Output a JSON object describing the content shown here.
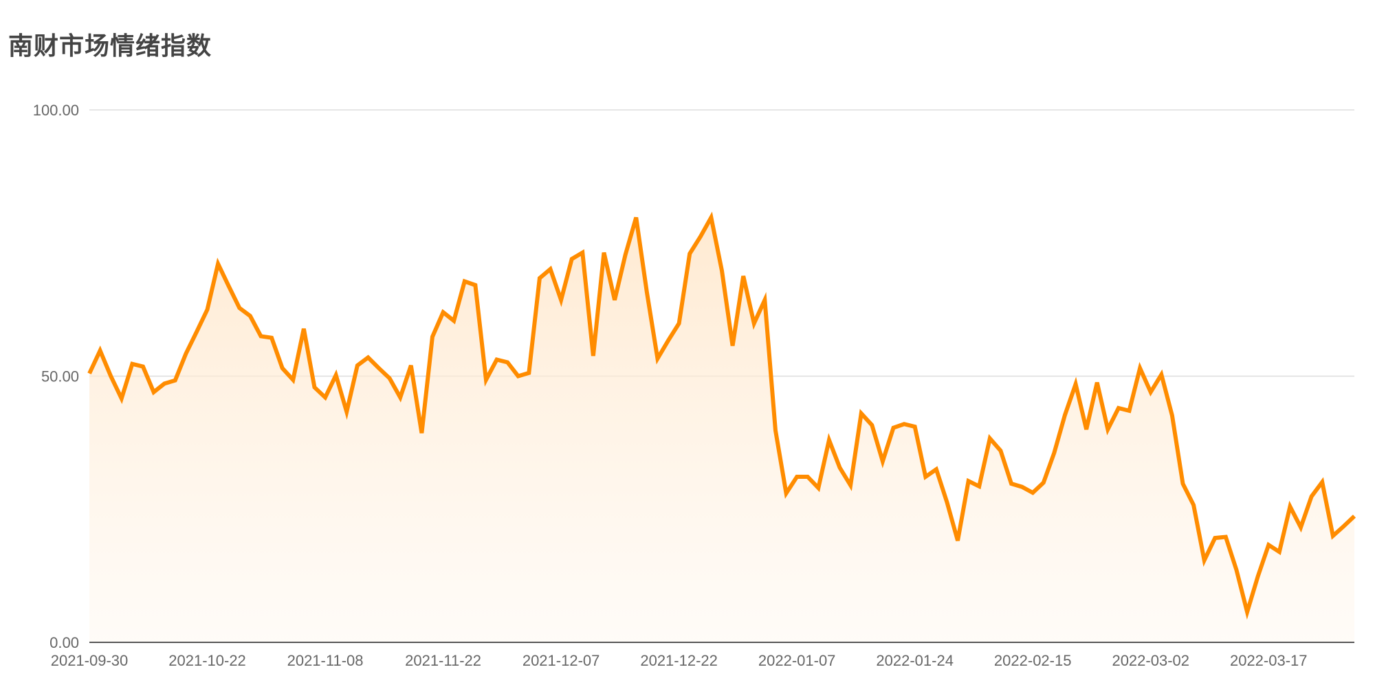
{
  "chart_data": {
    "type": "area",
    "title": "南财市场情绪指数",
    "xlabel": "",
    "ylabel": "",
    "ylim": [
      0,
      100
    ],
    "y_ticks": [
      "0.00",
      "50.00",
      "100.00"
    ],
    "grid": true,
    "legend": "none",
    "x_ticks": [
      "2021-09-30",
      "2021-10-22",
      "2021-11-08",
      "2021-11-22",
      "2021-12-07",
      "2021-12-22",
      "2022-01-07",
      "2022-01-24",
      "2022-02-15",
      "2022-03-02",
      "2022-03-17"
    ],
    "colors": {
      "line": "#ff8c00",
      "area_top": "#ffe3c2",
      "area_bottom": "#fff8f0",
      "grid": "#dddddd",
      "axis": "#555555"
    },
    "series": [
      {
        "values": [
          50.5,
          54.8,
          50.0,
          45.8,
          52.3,
          51.8,
          47.0,
          48.6,
          49.2,
          54.2,
          58.3,
          62.5,
          71.1,
          66.9,
          62.8,
          61.3,
          57.5,
          57.2,
          51.5,
          49.3,
          58.9,
          47.9,
          46.0,
          50.2,
          43.3,
          52.0,
          53.5,
          51.5,
          49.6,
          46.0,
          52.0,
          39.3,
          57.4,
          62.0,
          60.4,
          67.8,
          67.1,
          49.3,
          53.1,
          52.6,
          50.0,
          50.6,
          68.4,
          70.1,
          64.3,
          72.0,
          73.2,
          53.8,
          73.2,
          64.3,
          72.8,
          79.8,
          65.8,
          53.3,
          56.7,
          59.9,
          73.0,
          76.2,
          79.8,
          69.8,
          55.7,
          68.8,
          59.9,
          64.3,
          39.8,
          28.0,
          31.1,
          31.1,
          29.0,
          38.0,
          32.8,
          29.5,
          43.0,
          40.8,
          34.0,
          40.3,
          41.0,
          40.5,
          31.1,
          32.5,
          26.3,
          19.1,
          30.3,
          29.3,
          38.3,
          36.0,
          29.8,
          29.2,
          28.1,
          30.0,
          35.6,
          42.7,
          48.5,
          40.0,
          48.8,
          40.0,
          44.0,
          43.5,
          51.5,
          47.0,
          50.3,
          42.6,
          29.8,
          25.8,
          15.4,
          19.6,
          19.8,
          13.6,
          5.7,
          12.4,
          18.3,
          17.0,
          25.5,
          21.6,
          27.4,
          30.1,
          20.0,
          21.8,
          23.7
        ]
      }
    ]
  }
}
